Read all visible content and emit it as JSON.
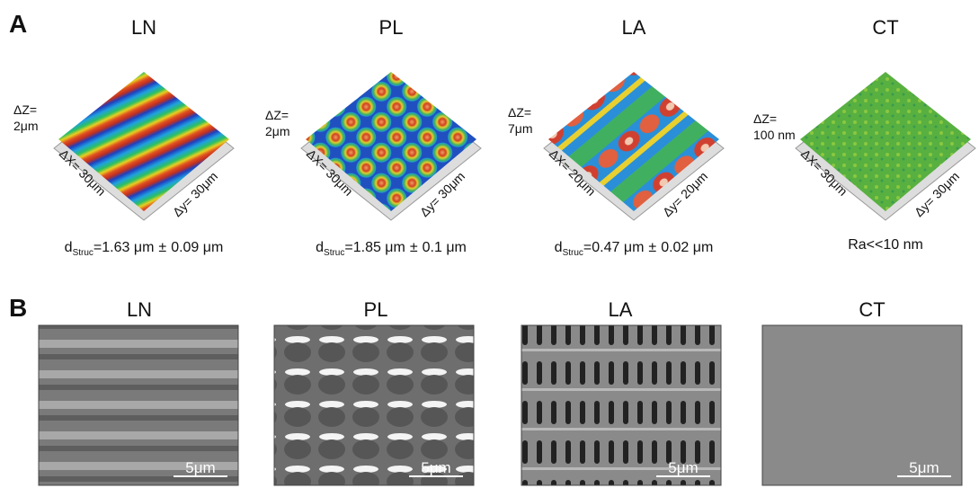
{
  "panel_a": {
    "label": "A",
    "items": [
      {
        "title": "LN",
        "dz_label": "ΔZ=",
        "dz_value": "2μm",
        "dx": "ΔX= 30μm",
        "dy": "Δy= 30μm",
        "d": "d",
        "sub": "Struc",
        "value": "=1.63 μm",
        "pm": "±",
        "error": "0.09 μm"
      },
      {
        "title": "PL",
        "dz_label": "ΔZ=",
        "dz_value": "2μm",
        "dx": "ΔX= 30μm",
        "dy": "Δy= 30μm",
        "d": "d",
        "sub": "Struc",
        "value": "=1.85 μm",
        "pm": "±",
        "error": "0.1 μm"
      },
      {
        "title": "LA",
        "dz_label": "ΔZ=",
        "dz_value": "7μm",
        "dx": "ΔX= 20μm",
        "dy": "Δy= 20μm",
        "d": "d",
        "sub": "Struc",
        "value": "=0.47 μm",
        "pm": "±",
        "error": "0.02 μm"
      },
      {
        "title": "CT",
        "dz_label": "ΔZ=",
        "dz_value": "100 nm",
        "dx": "ΔX= 30μm",
        "dy": "Δy= 30μm",
        "caption": "Ra<<10 nm"
      }
    ]
  },
  "panel_b": {
    "label": "B",
    "items": [
      {
        "title": "LN",
        "scale": "5μm"
      },
      {
        "title": "PL",
        "scale": "5μm"
      },
      {
        "title": "LA",
        "scale": "5μm"
      },
      {
        "title": "CT",
        "scale": "5μm"
      }
    ]
  }
}
